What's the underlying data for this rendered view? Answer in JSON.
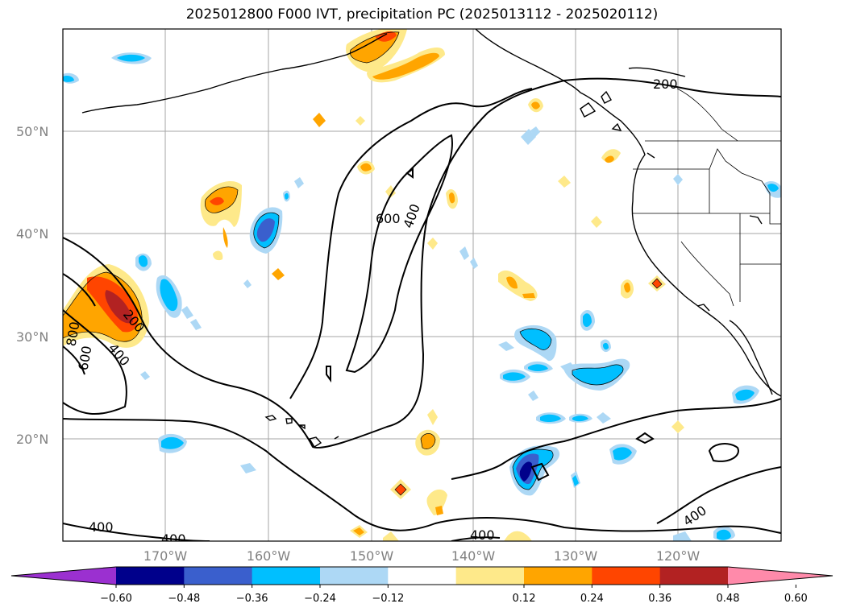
{
  "title": "2025012800 F000 IVT, precipitation PC (2025013112 - 2025020112)",
  "lat_labels": [
    "50°N",
    "40°N",
    "30°N",
    "20°N"
  ],
  "lon_labels": [
    "170°W",
    "160°W",
    "150°W",
    "140°W",
    "130°W",
    "120°W"
  ],
  "contour_labels": [
    "200",
    "600",
    "400",
    "200",
    "800",
    "600",
    "400",
    "400",
    "400",
    "400",
    "400"
  ],
  "colorbar": {
    "ticks": [
      "−0.60",
      "−0.48",
      "−0.36",
      "−0.24",
      "−0.12",
      "0.12",
      "0.24",
      "0.36",
      "0.48",
      "0.60"
    ],
    "colors": [
      "#9b30d0",
      "#00008b",
      "#3a5fcd",
      "#00bfff",
      "#add8f5",
      "#ffffff",
      "#fee98a",
      "#ffa500",
      "#ff4500",
      "#b22222",
      "#ff8aaa"
    ]
  }
}
